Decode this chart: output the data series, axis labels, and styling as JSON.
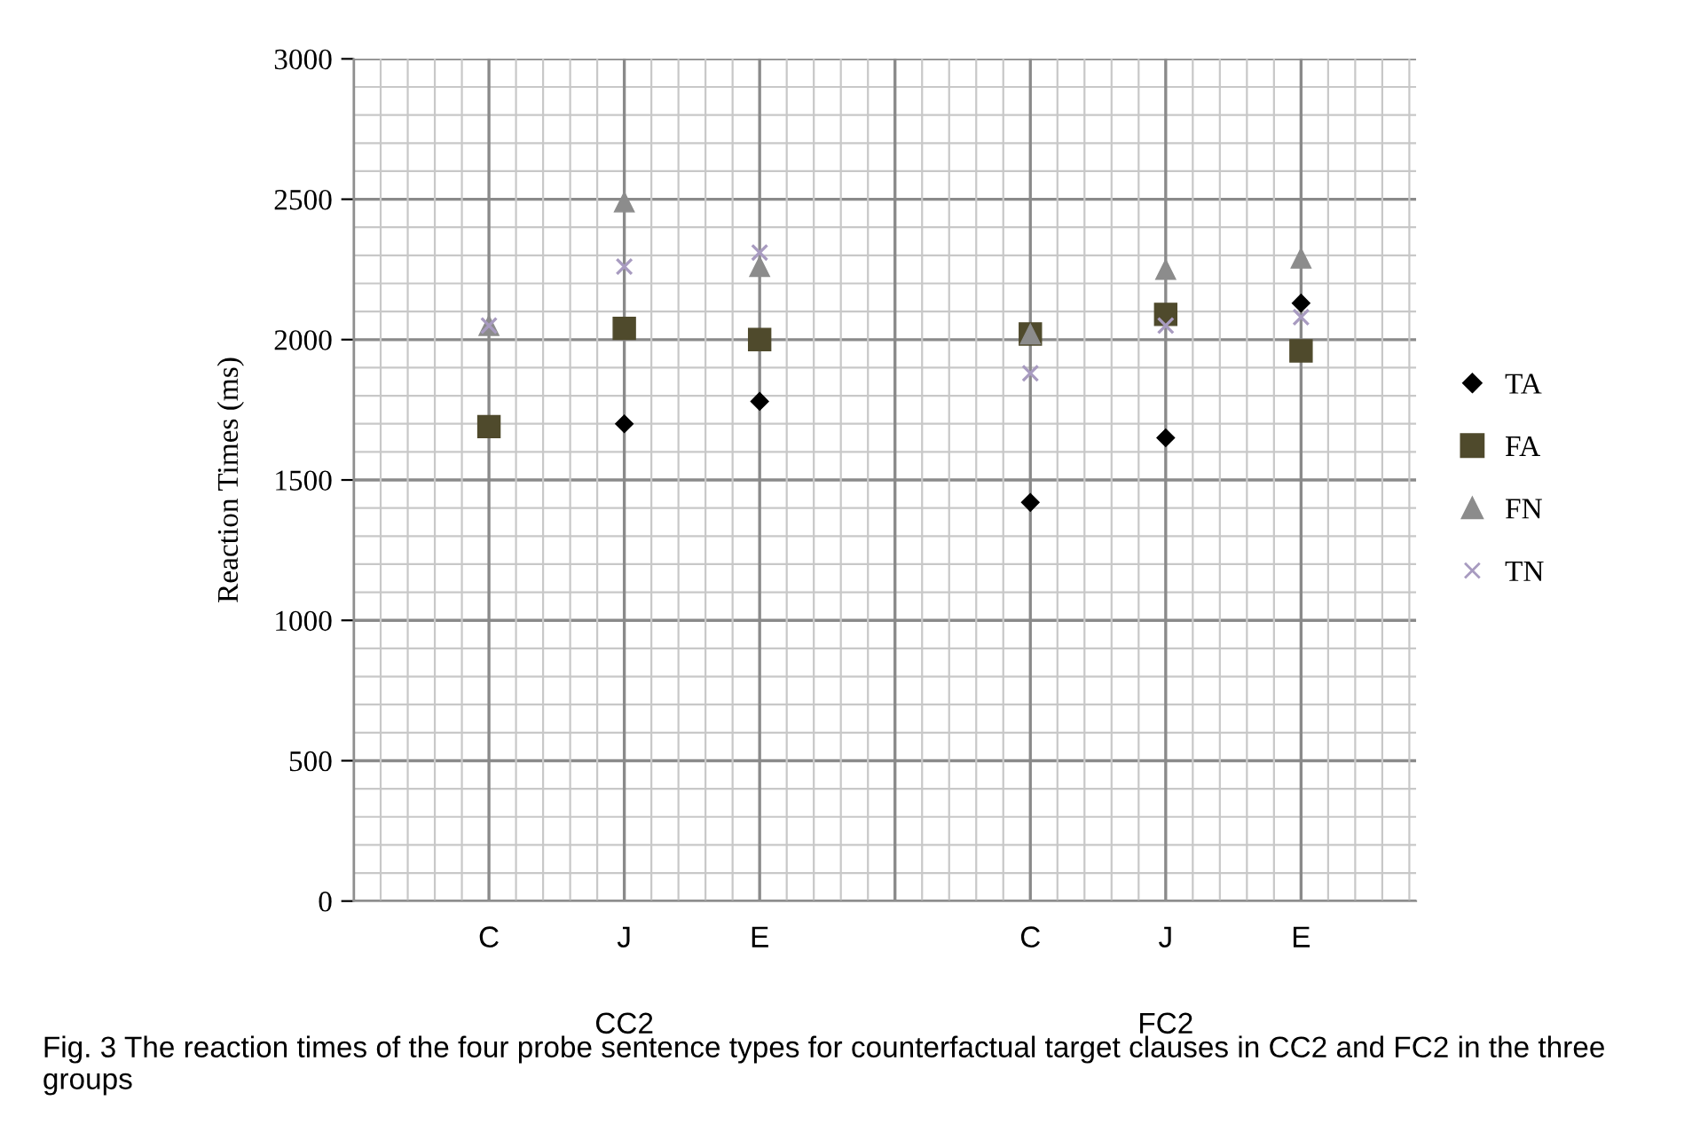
{
  "chart_data": {
    "type": "scatter",
    "categories": [
      null,
      "C",
      "J",
      "E",
      null,
      "C",
      "J",
      "E"
    ],
    "ylabel": "Reaction Times (ms)",
    "ylim": [
      0,
      3000
    ],
    "yticks": [
      0,
      500,
      1000,
      1500,
      2000,
      2500,
      3000
    ],
    "grid": true,
    "legend": "right",
    "series": [
      {
        "name": "TA",
        "color": "#000000",
        "marker": "diamond",
        "values": [
          null,
          null,
          1700,
          1780,
          null,
          1420,
          1650,
          2130
        ]
      },
      {
        "name": "FA",
        "color": "#4f4a2c",
        "marker": "square",
        "values": [
          null,
          1690,
          2040,
          2000,
          null,
          2020,
          2090,
          1960
        ]
      },
      {
        "name": "FN",
        "color": "#8c8c8c",
        "marker": "triangle",
        "values": [
          null,
          2050,
          2490,
          2260,
          null,
          2020,
          2250,
          2290
        ]
      },
      {
        "name": "TN",
        "color": "#a89bc0",
        "marker": "cross",
        "values": [
          null,
          2050,
          2260,
          2310,
          null,
          1880,
          2050,
          2080
        ]
      }
    ],
    "annotations": [
      "CC2",
      "FC2",
      "Fig. 3 The reaction times of the four probe sentence types for counterfactual target clauses in CC2 and FC2 in the three groups"
    ]
  }
}
